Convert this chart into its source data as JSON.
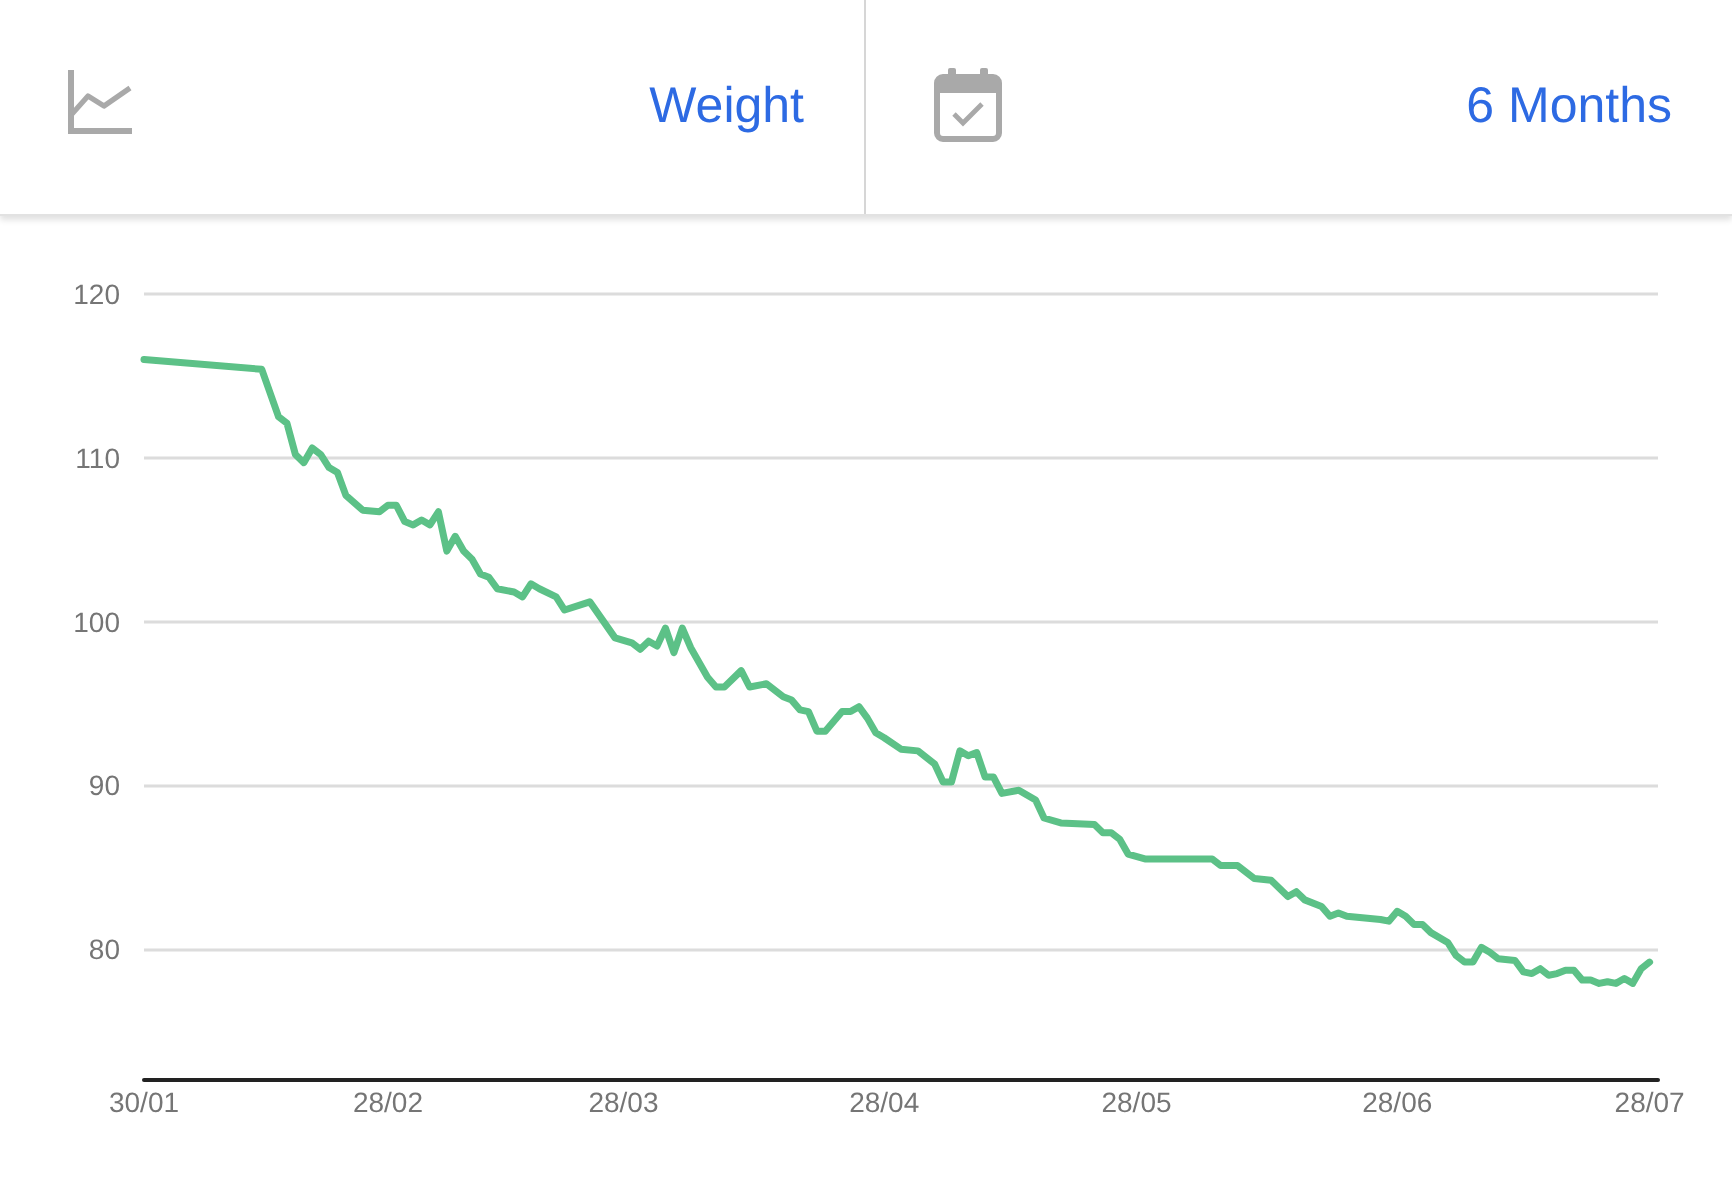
{
  "chart_data": {
    "type": "line",
    "title": "Weight",
    "subtitle": "6 Months",
    "x": [
      "--01-30",
      "--02-13",
      "--02-15",
      "--02-16",
      "--02-17",
      "--02-18",
      "--02-19",
      "--02-20",
      "--02-21",
      "--02-22",
      "--02-23",
      "--02-25",
      "--02-27",
      "--02-28",
      "--03-01",
      "--03-02",
      "--03-03",
      "--03-04",
      "--03-05",
      "--03-06",
      "--03-07",
      "--03-08",
      "--03-09",
      "--03-10",
      "--03-11",
      "--03-12",
      "--03-13",
      "--03-15",
      "--03-16",
      "--03-17",
      "--03-18",
      "--03-20",
      "--03-21",
      "--03-24",
      "--03-27",
      "--03-29",
      "--03-30",
      "--03-31",
      "--04-01",
      "--04-02",
      "--04-03",
      "--04-04",
      "--04-05",
      "--04-07",
      "--04-08",
      "--04-09",
      "--04-11",
      "--04-12",
      "--04-14",
      "--04-16",
      "--04-17",
      "--04-18",
      "--04-19",
      "--04-20",
      "--04-21",
      "--04-23",
      "--04-24",
      "--04-25",
      "--04-26",
      "--04-27",
      "--04-28",
      "--04-30",
      "--05-02",
      "--05-04",
      "--05-05",
      "--05-06",
      "--05-07",
      "--05-08",
      "--05-09",
      "--05-10",
      "--05-11",
      "--05-12",
      "--05-14",
      "--05-16",
      "--05-17",
      "--05-19",
      "--05-23",
      "--05-24",
      "--05-25",
      "--05-26",
      "--05-27",
      "--05-29",
      "--06-06",
      "--06-07",
      "--06-09",
      "--06-11",
      "--06-13",
      "--06-15",
      "--06-16",
      "--06-17",
      "--06-19",
      "--06-20",
      "--06-21",
      "--06-22",
      "--06-26",
      "--06-27",
      "--06-28",
      "--06-29",
      "--06-30",
      "--07-01",
      "--07-02",
      "--07-04",
      "--07-05",
      "--07-06",
      "--07-07",
      "--07-08",
      "--07-09",
      "--07-10",
      "--07-12",
      "--07-13",
      "--07-14",
      "--07-15",
      "--07-16",
      "--07-17",
      "--07-18",
      "--07-19",
      "--07-20",
      "--07-21",
      "--07-22",
      "--07-23",
      "--07-24",
      "--07-25",
      "--07-26",
      "--07-27",
      "--07-28"
    ],
    "values": [
      116.0,
      115.4,
      112.5,
      112.1,
      110.2,
      109.7,
      110.6,
      110.2,
      109.4,
      109.1,
      107.7,
      106.8,
      106.7,
      107.1,
      107.1,
      106.1,
      105.9,
      106.2,
      105.9,
      106.7,
      104.3,
      105.2,
      104.3,
      103.8,
      102.9,
      102.7,
      102.0,
      101.8,
      101.5,
      102.3,
      102.0,
      101.5,
      100.7,
      101.2,
      99.0,
      98.7,
      98.3,
      98.8,
      98.5,
      99.6,
      98.1,
      99.6,
      98.4,
      96.6,
      96.0,
      96.0,
      97.0,
      96.0,
      96.2,
      95.4,
      95.2,
      94.6,
      94.5,
      93.3,
      93.3,
      94.5,
      94.5,
      94.8,
      94.1,
      93.2,
      92.9,
      92.2,
      92.1,
      91.3,
      90.2,
      90.2,
      92.1,
      91.8,
      92.0,
      90.5,
      90.5,
      89.5,
      89.7,
      89.1,
      88.0,
      87.7,
      87.6,
      87.1,
      87.1,
      86.7,
      85.8,
      85.5,
      85.5,
      85.1,
      85.1,
      84.3,
      84.2,
      83.2,
      83.5,
      83.0,
      82.6,
      82.0,
      82.2,
      82.0,
      81.8,
      81.7,
      82.3,
      82.0,
      81.5,
      81.5,
      81.0,
      80.4,
      79.6,
      79.2,
      79.2,
      80.1,
      79.8,
      79.4,
      79.3,
      78.6,
      78.5,
      78.8,
      78.4,
      78.5,
      78.7,
      78.7,
      78.1,
      78.1,
      77.9,
      78.0,
      77.9,
      78.2,
      77.9,
      78.8,
      79.2
    ],
    "color": "#5cc187",
    "xlim": [
      "--01-30",
      "--07-29"
    ],
    "xticks": [
      {
        "value": "--01-30",
        "label": "30/01"
      },
      {
        "value": "--02-28",
        "label": "28/02"
      },
      {
        "value": "--03-28",
        "label": "28/03"
      },
      {
        "value": "--04-28",
        "label": "28/04"
      },
      {
        "value": "--05-28",
        "label": "28/05"
      },
      {
        "value": "--06-28",
        "label": "28/06"
      },
      {
        "value": "--07-28",
        "label": "28/07"
      }
    ],
    "ylim": [
      72,
      120
    ],
    "yticks": [
      80,
      90,
      100,
      110,
      120
    ],
    "grid": "y",
    "marker": "none",
    "line_style": "solid"
  }
}
